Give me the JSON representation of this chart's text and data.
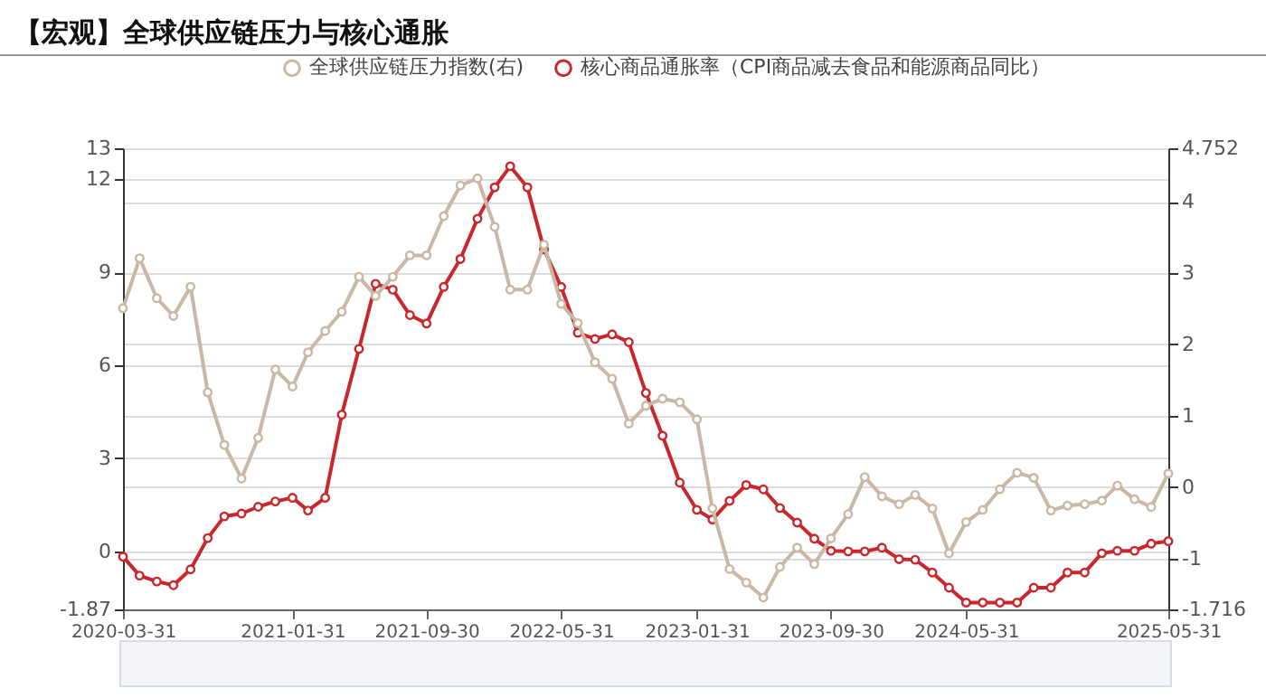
{
  "chart_data": {
    "type": "line",
    "title": "【宏观】全球供应链压力与核心通胀",
    "x": [
      "2020-03-31",
      "2020-04-30",
      "2020-05-31",
      "2020-06-30",
      "2020-07-31",
      "2020-08-31",
      "2020-09-30",
      "2020-10-31",
      "2020-11-30",
      "2020-12-31",
      "2021-01-31",
      "2021-02-28",
      "2021-03-31",
      "2021-04-30",
      "2021-05-31",
      "2021-06-30",
      "2021-07-31",
      "2021-08-31",
      "2021-09-30",
      "2021-10-31",
      "2021-11-30",
      "2021-12-31",
      "2022-01-31",
      "2022-02-28",
      "2022-03-31",
      "2022-04-30",
      "2022-05-31",
      "2022-06-30",
      "2022-07-31",
      "2022-08-31",
      "2022-09-30",
      "2022-10-31",
      "2022-11-30",
      "2022-12-31",
      "2023-01-31",
      "2023-02-28",
      "2023-03-31",
      "2023-04-30",
      "2023-05-31",
      "2023-06-30",
      "2023-07-31",
      "2023-08-31",
      "2023-09-30",
      "2023-10-31",
      "2023-11-30",
      "2023-12-31",
      "2024-01-31",
      "2024-02-29",
      "2024-03-31",
      "2024-04-30",
      "2024-05-31",
      "2024-06-30",
      "2024-07-31",
      "2024-08-31",
      "2024-09-30",
      "2024-10-31",
      "2024-11-30",
      "2024-12-31",
      "2025-01-31",
      "2025-02-28",
      "2025-03-31",
      "2025-04-30",
      "2025-05-31"
    ],
    "series": [
      {
        "name": "全球供应链压力指数(右)",
        "color": "#c9b8a5",
        "axis": "y2",
        "values": [
          2.51,
          3.21,
          2.65,
          2.4,
          2.81,
          1.33,
          0.59,
          0.12,
          0.69,
          1.65,
          1.41,
          1.89,
          2.19,
          2.46,
          2.95,
          2.68,
          2.95,
          3.25,
          3.25,
          3.8,
          4.23,
          4.33,
          3.65,
          2.77,
          2.77,
          3.4,
          2.57,
          2.3,
          1.75,
          1.52,
          0.89,
          1.14,
          1.24,
          1.19,
          0.95,
          -0.3,
          -1.15,
          -1.34,
          -1.55,
          -1.12,
          -0.85,
          -1.08,
          -0.72,
          -0.38,
          0.14,
          -0.13,
          -0.24,
          -0.11,
          -0.3,
          -0.93,
          -0.49,
          -0.32,
          -0.03,
          0.2,
          0.13,
          -0.33,
          -0.26,
          -0.24,
          -0.19,
          0.02,
          -0.17,
          -0.28,
          0.19
        ]
      },
      {
        "name": "核心商品通胀率（CPI商品减去食品和能源商品同比）",
        "color": "#c8282d",
        "values": [
          -0.17,
          -0.78,
          -0.97,
          -1.09,
          -0.58,
          0.43,
          1.13,
          1.22,
          1.44,
          1.61,
          1.73,
          1.32,
          1.73,
          4.41,
          6.53,
          8.63,
          8.44,
          7.62,
          7.35,
          8.53,
          9.43,
          10.73,
          11.74,
          12.42,
          11.74,
          9.74,
          8.53,
          7.05,
          6.85,
          7.0,
          6.75,
          5.11,
          3.73,
          2.22,
          1.34,
          1.03,
          1.63,
          2.14,
          2.0,
          1.4,
          0.93,
          0.41,
          0.02,
          0,
          0,
          0.12,
          -0.25,
          -0.27,
          -0.68,
          -1.17,
          -1.65,
          -1.65,
          -1.65,
          -1.65,
          -1.17,
          -1.17,
          -0.68,
          -0.68,
          -0.06,
          0.02,
          0.02,
          0.25,
          0.33
        ]
      }
    ],
    "xlim": [
      "2020-03-31",
      "2025-05-31"
    ],
    "xticks": [
      "2020-03-31",
      "2021-01-31",
      "2021-09-30",
      "2022-05-31",
      "2023-01-31",
      "2023-09-30",
      "2024-05-31",
      "2025-05-31"
    ],
    "ylim": [
      -1.87,
      13
    ],
    "yticks": [
      -1.87,
      0,
      3,
      6,
      9,
      12,
      13
    ],
    "y2lim": [
      -1.716,
      4.752
    ],
    "y2ticks": [
      -1.716,
      -1,
      0,
      1,
      2,
      3,
      4,
      4.752
    ],
    "grid": "y",
    "legend": "top",
    "marker": "circle",
    "line_style": "solid"
  }
}
